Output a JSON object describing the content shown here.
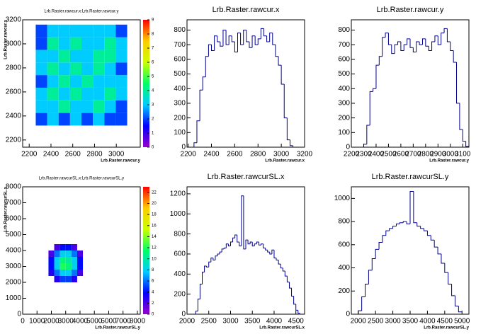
{
  "chart_data": [
    {
      "type": "heatmap",
      "title": "Lrb.Raster.rawcur.x:Lrb.Raster.rawcur.y",
      "xlabel": "Lrb.Raster.rawcur.y",
      "ylabel": "Lrb.Raster.rawcur.x",
      "xlim": [
        2140,
        3220
      ],
      "xticks": [
        2200,
        2400,
        2600,
        2800,
        3000
      ],
      "ylim": [
        2140,
        3200
      ],
      "yticks": [
        2200,
        2400,
        2600,
        2800,
        3000,
        3200
      ],
      "zlim": [
        0,
        9
      ],
      "zticks": [
        0,
        1,
        2,
        3,
        4,
        5,
        6,
        7,
        8,
        9
      ],
      "palette": [
        "#9900cc",
        "#0000ff",
        "#00ccff",
        "#00ff66",
        "#ccff00",
        "#ffcc00",
        "#ff0000"
      ],
      "xbins": [
        2260,
        2365,
        2470,
        2575,
        2680,
        2785,
        2890,
        2995,
        3100
      ],
      "ybins": [
        2320,
        2425,
        2530,
        2635,
        2740,
        2845,
        2950,
        3055,
        3160
      ],
      "z": [
        [
          2,
          3,
          2,
          3,
          2,
          3,
          2,
          2
        ],
        [
          3,
          3,
          4,
          3,
          3,
          4,
          3,
          2
        ],
        [
          3,
          4,
          3,
          4,
          3,
          3,
          4,
          3
        ],
        [
          2,
          3,
          4,
          3,
          4,
          3,
          3,
          3
        ],
        [
          3,
          4,
          3,
          4,
          3,
          4,
          3,
          2
        ],
        [
          3,
          3,
          4,
          3,
          3,
          4,
          4,
          3
        ],
        [
          2,
          4,
          3,
          4,
          3,
          3,
          4,
          3
        ],
        [
          2,
          3,
          3,
          3,
          3,
          3,
          3,
          2
        ]
      ]
    },
    {
      "type": "histogram",
      "title": "Lrb.Raster.rawcur.x",
      "xlabel": "Lrb.Raster.rawcur.x",
      "xlim": [
        2190,
        3200
      ],
      "xticks": [
        2200,
        2400,
        2600,
        2800,
        3000,
        3200
      ],
      "ylim": [
        0,
        870
      ],
      "yticks": [
        0,
        100,
        200,
        300,
        400,
        500,
        600,
        700,
        800
      ],
      "color": "#00008b",
      "bins": [
        2250,
        2275,
        2300,
        2325,
        2350,
        2375,
        2400,
        2425,
        2450,
        2475,
        2500,
        2525,
        2550,
        2575,
        2600,
        2625,
        2650,
        2675,
        2700,
        2725,
        2750,
        2775,
        2800,
        2825,
        2850,
        2875,
        2900,
        2925,
        2950,
        2975,
        3000,
        3025,
        3050,
        3075,
        3100,
        3125
      ],
      "values": [
        30,
        180,
        390,
        480,
        620,
        700,
        660,
        760,
        720,
        690,
        800,
        700,
        760,
        720,
        650,
        780,
        700,
        800,
        720,
        680,
        760,
        700,
        740,
        810,
        760,
        720,
        780,
        700,
        620,
        560,
        430,
        200,
        50,
        10,
        0
      ]
    },
    {
      "type": "histogram",
      "title": "Lrb.Raster.rawcur.y",
      "xlabel": "Lrb.Raster.rawcur.y",
      "xlim": [
        2200,
        3150
      ],
      "xticks": [
        2200,
        2300,
        2400,
        2500,
        2600,
        2700,
        2800,
        2900,
        3000,
        3100
      ],
      "ylim": [
        0,
        870
      ],
      "yticks": [
        0,
        100,
        200,
        300,
        400,
        500,
        600,
        700,
        800
      ],
      "color": "#00008b",
      "bins": [
        2300,
        2325,
        2350,
        2375,
        2400,
        2425,
        2450,
        2475,
        2500,
        2525,
        2550,
        2575,
        2600,
        2625,
        2650,
        2675,
        2700,
        2725,
        2750,
        2775,
        2800,
        2825,
        2850,
        2875,
        2900,
        2925,
        2950,
        2975,
        3000,
        3025,
        3050,
        3075,
        3100,
        3125,
        3150
      ],
      "values": [
        20,
        150,
        380,
        400,
        560,
        620,
        750,
        780,
        700,
        640,
        700,
        720,
        660,
        700,
        740,
        680,
        650,
        720,
        700,
        740,
        690,
        660,
        720,
        760,
        700,
        780,
        810,
        720,
        660,
        580,
        300,
        120,
        40,
        5
      ]
    },
    {
      "type": "heatmap",
      "title": "Lrb.Raster.rawcurSL.x:Lrb.Raster.rawcurSL.y",
      "xlabel": "Lrb.Raster.rawcurSL.y",
      "ylabel": "Lrb.Raster.rawcurSL.x",
      "xlim": [
        0,
        8200
      ],
      "xticks": [
        0,
        1000,
        2000,
        3000,
        4000,
        5000,
        6000,
        7000,
        8000
      ],
      "ylim": [
        0,
        8000
      ],
      "yticks": [
        0,
        1000,
        2000,
        3000,
        4000,
        5000,
        6000,
        7000,
        8000
      ],
      "zlim": [
        0,
        23
      ],
      "zticks": [
        0,
        2,
        4,
        6,
        8,
        10,
        12,
        14,
        16,
        18,
        20,
        22
      ],
      "palette": [
        "#9900cc",
        "#0000ff",
        "#00ccff",
        "#00ff66",
        "#ccff00",
        "#ffcc00",
        "#ff0000"
      ],
      "xbins": [
        1800,
        2200,
        2600,
        3000,
        3400,
        3800,
        4200
      ],
      "ybins": [
        2000,
        2400,
        2800,
        3200,
        3600,
        4000,
        4400
      ],
      "z": [
        [
          0,
          3,
          5,
          5,
          3,
          0
        ],
        [
          3,
          6,
          8,
          8,
          6,
          2
        ],
        [
          4,
          8,
          12,
          11,
          8,
          4
        ],
        [
          4,
          8,
          11,
          10,
          8,
          4
        ],
        [
          2,
          6,
          8,
          8,
          6,
          2
        ],
        [
          0,
          2,
          4,
          4,
          2,
          0
        ]
      ]
    },
    {
      "type": "histogram",
      "title": "Lrb.Raster.rawcurSL.x",
      "xlabel": "Lrb.Raster.rawcurSL.x",
      "xlim": [
        2000,
        4700
      ],
      "xticks": [
        2000,
        2500,
        3000,
        3500,
        4000,
        4500
      ],
      "ylim": [
        0,
        1270
      ],
      "yticks": [
        0,
        200,
        400,
        600,
        800,
        1000,
        1200
      ],
      "color": "#00008b",
      "bins": [
        2200,
        2250,
        2300,
        2350,
        2400,
        2450,
        2500,
        2550,
        2600,
        2650,
        2700,
        2750,
        2800,
        2850,
        2900,
        2950,
        3000,
        3050,
        3100,
        3150,
        3200,
        3250,
        3300,
        3350,
        3400,
        3450,
        3500,
        3550,
        3600,
        3650,
        3700,
        3750,
        3800,
        3850,
        3900,
        3950,
        4000,
        4050,
        4100,
        4150,
        4200,
        4250,
        4300,
        4350,
        4400,
        4450,
        4500,
        4550,
        4600
      ],
      "values": [
        30,
        150,
        300,
        420,
        480,
        470,
        520,
        560,
        540,
        580,
        600,
        620,
        650,
        660,
        700,
        680,
        720,
        760,
        790,
        720,
        680,
        1180,
        650,
        740,
        700,
        720,
        680,
        700,
        720,
        690,
        700,
        660,
        640,
        620,
        600,
        640,
        560,
        540,
        500,
        460,
        430,
        380,
        320,
        260,
        180,
        100,
        40,
        10
      ]
    },
    {
      "type": "histogram",
      "title": "Lrb.Raster.rawcurSL.y",
      "xlabel": "Lrb.Raster.rawcurSL.y",
      "xlim": [
        1800,
        5200
      ],
      "xticks": [
        2000,
        2500,
        3000,
        3500,
        4000,
        4500,
        5000
      ],
      "ylim": [
        0,
        1100
      ],
      "yticks": [
        0,
        200,
        400,
        600,
        800,
        1000
      ],
      "color": "#00008b",
      "bins": [
        2000,
        2100,
        2200,
        2300,
        2400,
        2500,
        2600,
        2700,
        2800,
        2900,
        3000,
        3100,
        3200,
        3300,
        3400,
        3500,
        3600,
        3700,
        3800,
        3900,
        4000,
        4100,
        4200,
        4300,
        4400,
        4500,
        4600,
        4700,
        4800,
        4900,
        5000
      ],
      "values": [
        30,
        150,
        260,
        380,
        480,
        560,
        620,
        680,
        720,
        740,
        760,
        780,
        790,
        800,
        780,
        1060,
        790,
        760,
        740,
        720,
        680,
        640,
        580,
        520,
        440,
        360,
        260,
        160,
        70,
        20
      ]
    }
  ]
}
